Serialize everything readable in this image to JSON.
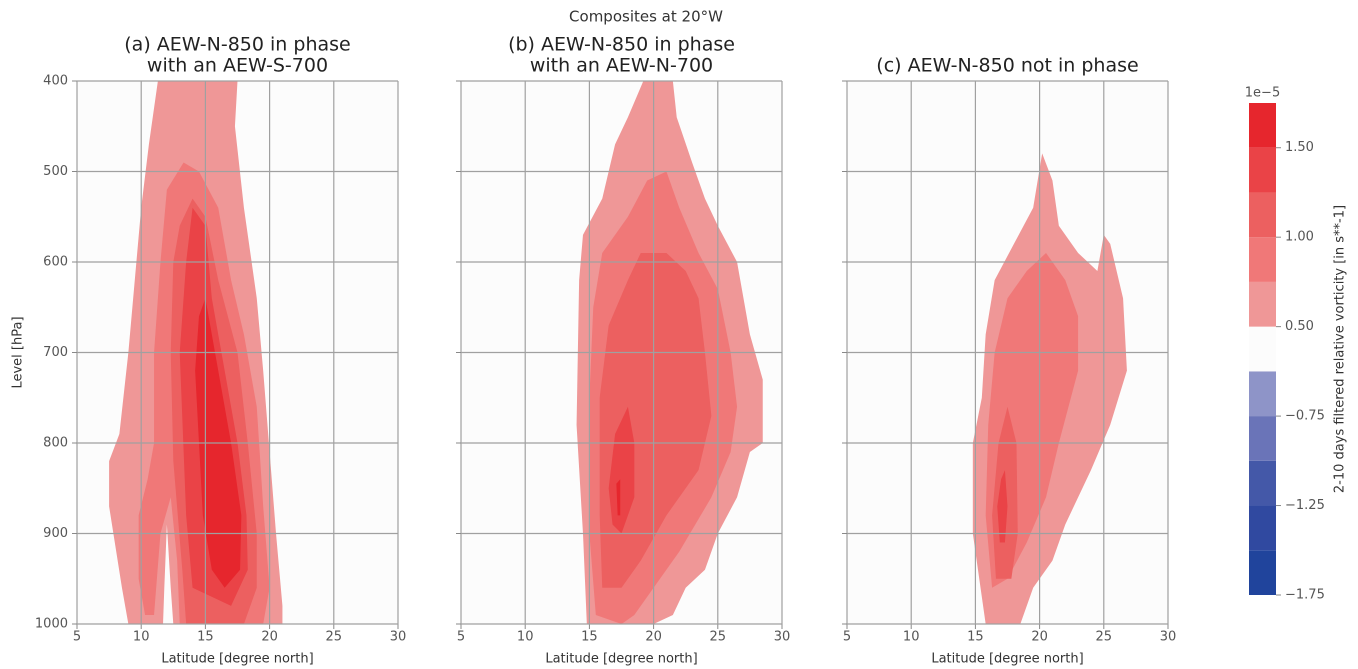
{
  "title": "Composites at 20°W",
  "chart_data": [
    {
      "type": "contour",
      "title_lines": [
        "(a) AEW-N-850 in phase",
        "with an AEW-S-700"
      ],
      "xlabel": "Latitude [degree north]",
      "ylabel": "Level [hPa]",
      "xlim": [
        5,
        30
      ],
      "ylim": [
        1000,
        400
      ],
      "xticks": [
        5,
        10,
        15,
        20,
        25,
        30
      ],
      "yticks": [
        400,
        500,
        600,
        700,
        800,
        900,
        1000
      ],
      "ytick_labels": true,
      "grid": true,
      "contours": [
        {
          "level": 0.5,
          "points": [
            [
              9,
              1000
            ],
            [
              8.5,
              960
            ],
            [
              7.5,
              870
            ],
            [
              7.5,
              820
            ],
            [
              8.3,
              790
            ],
            [
              9,
              700
            ],
            [
              9.5,
              620
            ],
            [
              10,
              540
            ],
            [
              10.6,
              470
            ],
            [
              11.3,
              400
            ],
            [
              17.5,
              400
            ],
            [
              17.3,
              450
            ],
            [
              18,
              540
            ],
            [
              19,
              640
            ],
            [
              19.5,
              720
            ],
            [
              20,
              810
            ],
            [
              20.5,
              900
            ],
            [
              21,
              980
            ],
            [
              21,
              1000
            ],
            [
              12.5,
              1000
            ],
            [
              12.3,
              960
            ],
            [
              12,
              890
            ],
            [
              11.8,
              960
            ],
            [
              11.7,
              1000
            ]
          ]
        },
        {
          "level": 0.75,
          "points": [
            [
              10.3,
              990
            ],
            [
              9.8,
              950
            ],
            [
              9.8,
              880
            ],
            [
              10.5,
              840
            ],
            [
              11,
              800
            ],
            [
              11,
              700
            ],
            [
              11.5,
              600
            ],
            [
              12,
              520
            ],
            [
              13.3,
              490
            ],
            [
              14.5,
              500
            ],
            [
              16,
              540
            ],
            [
              17,
              620
            ],
            [
              18,
              680
            ],
            [
              19,
              760
            ],
            [
              19.5,
              870
            ],
            [
              20,
              960
            ],
            [
              19.5,
              1000
            ],
            [
              13,
              1000
            ],
            [
              12.8,
              930
            ],
            [
              12.3,
              860
            ],
            [
              11.5,
              900
            ],
            [
              11,
              990
            ]
          ]
        },
        {
          "level": 1.0,
          "points": [
            [
              13.5,
              1000
            ],
            [
              13.2,
              940
            ],
            [
              12.5,
              820
            ],
            [
              12.3,
              700
            ],
            [
              12.5,
              600
            ],
            [
              13,
              560
            ],
            [
              14,
              530
            ],
            [
              15,
              550
            ],
            [
              16,
              620
            ],
            [
              17.5,
              700
            ],
            [
              18.3,
              800
            ],
            [
              19,
              900
            ],
            [
              19,
              960
            ],
            [
              18,
              1000
            ]
          ]
        },
        {
          "level": 1.25,
          "points": [
            [
              14,
              960
            ],
            [
              13.5,
              880
            ],
            [
              13,
              700
            ],
            [
              13.5,
              600
            ],
            [
              14,
              540
            ],
            [
              15,
              560
            ],
            [
              15.5,
              640
            ],
            [
              16.5,
              720
            ],
            [
              17.5,
              800
            ],
            [
              18.2,
              880
            ],
            [
              18.3,
              940
            ],
            [
              17,
              980
            ]
          ]
        },
        {
          "level": 1.5,
          "points": [
            [
              15.5,
              940
            ],
            [
              14.8,
              880
            ],
            [
              14.5,
              800
            ],
            [
              14.2,
              720
            ],
            [
              14.5,
              660
            ],
            [
              15,
              640
            ],
            [
              16,
              720
            ],
            [
              17,
              800
            ],
            [
              17.8,
              880
            ],
            [
              17.7,
              940
            ],
            [
              16.5,
              960
            ]
          ]
        }
      ]
    },
    {
      "type": "contour",
      "title_lines": [
        "(b) AEW-N-850 in phase",
        "with an AEW-N-700"
      ],
      "xlabel": "Latitude [degree north]",
      "xlim": [
        5,
        30
      ],
      "ylim": [
        1000,
        400
      ],
      "xticks": [
        5,
        10,
        15,
        20,
        25,
        30
      ],
      "yticks": [
        400,
        500,
        600,
        700,
        800,
        900,
        1000
      ],
      "ytick_labels": false,
      "grid": true,
      "contours": [
        {
          "level": 0.5,
          "points": [
            [
              14.8,
              1000
            ],
            [
              14.5,
              900
            ],
            [
              14,
              780
            ],
            [
              14.2,
              620
            ],
            [
              14.5,
              570
            ],
            [
              16,
              530
            ],
            [
              17,
              470
            ],
            [
              18,
              440
            ],
            [
              19.2,
              400
            ],
            [
              21.5,
              400
            ],
            [
              21.8,
              440
            ],
            [
              23,
              490
            ],
            [
              24,
              530
            ],
            [
              25,
              560
            ],
            [
              26.5,
              600
            ],
            [
              27.5,
              680
            ],
            [
              28.5,
              730
            ],
            [
              28.5,
              800
            ],
            [
              27.5,
              810
            ],
            [
              26.5,
              860
            ],
            [
              25,
              900
            ],
            [
              24,
              940
            ],
            [
              22.5,
              960
            ],
            [
              21.5,
              990
            ],
            [
              20,
              1000
            ]
          ]
        },
        {
          "level": 0.75,
          "points": [
            [
              15.5,
              990
            ],
            [
              15,
              900
            ],
            [
              15,
              750
            ],
            [
              15.3,
              650
            ],
            [
              16,
              590
            ],
            [
              18,
              550
            ],
            [
              19.5,
              510
            ],
            [
              21,
              500
            ],
            [
              22,
              540
            ],
            [
              23.5,
              590
            ],
            [
              25,
              630
            ],
            [
              26,
              700
            ],
            [
              26.5,
              760
            ],
            [
              26,
              810
            ],
            [
              24.5,
              860
            ],
            [
              22,
              920
            ],
            [
              20,
              960
            ],
            [
              18.5,
              990
            ],
            [
              17.5,
              1000
            ]
          ]
        },
        {
          "level": 1.0,
          "points": [
            [
              16,
              960
            ],
            [
              15.8,
              880
            ],
            [
              15.8,
              750
            ],
            [
              16.5,
              670
            ],
            [
              18,
              620
            ],
            [
              19,
              590
            ],
            [
              21,
              590
            ],
            [
              22.5,
              610
            ],
            [
              23.5,
              640
            ],
            [
              24,
              700
            ],
            [
              24.5,
              770
            ],
            [
              23.5,
              830
            ],
            [
              21,
              880
            ],
            [
              19,
              930
            ],
            [
              17.5,
              960
            ]
          ]
        },
        {
          "level": 1.25,
          "points": [
            [
              16.8,
              890
            ],
            [
              16.5,
              850
            ],
            [
              17,
              790
            ],
            [
              18,
              760
            ],
            [
              18.5,
              800
            ],
            [
              18.5,
              860
            ],
            [
              17.5,
              900
            ]
          ]
        },
        {
          "level": 1.5,
          "points": [
            [
              17.2,
              880
            ],
            [
              17.1,
              845
            ],
            [
              17.4,
              840
            ],
            [
              17.4,
              880
            ]
          ]
        }
      ]
    },
    {
      "type": "contour",
      "title_lines": [
        "(c) AEW-N-850 not in phase"
      ],
      "xlabel": "Latitude [degree north]",
      "xlim": [
        5,
        30
      ],
      "ylim": [
        1000,
        400
      ],
      "xticks": [
        5,
        10,
        15,
        20,
        25,
        30
      ],
      "yticks": [
        400,
        500,
        600,
        700,
        800,
        900,
        1000
      ],
      "ytick_labels": false,
      "grid": true,
      "contours": [
        {
          "level": 0.5,
          "points": [
            [
              15.8,
              1000
            ],
            [
              14.8,
              900
            ],
            [
              14.8,
              800
            ],
            [
              15.5,
              750
            ],
            [
              15.8,
              680
            ],
            [
              16.5,
              620
            ],
            [
              18,
              580
            ],
            [
              19.5,
              540
            ],
            [
              20.2,
              480
            ],
            [
              21,
              510
            ],
            [
              21.5,
              560
            ],
            [
              23,
              590
            ],
            [
              24.5,
              610
            ],
            [
              25,
              570
            ],
            [
              25.5,
              580
            ],
            [
              26.5,
              640
            ],
            [
              26.8,
              720
            ],
            [
              25.5,
              780
            ],
            [
              24,
              830
            ],
            [
              22,
              890
            ],
            [
              21,
              930
            ],
            [
              19.5,
              960
            ],
            [
              18.5,
              1000
            ]
          ]
        },
        {
          "level": 0.75,
          "points": [
            [
              16.3,
              960
            ],
            [
              15.8,
              880
            ],
            [
              16,
              780
            ],
            [
              16.5,
              700
            ],
            [
              17.5,
              640
            ],
            [
              19,
              610
            ],
            [
              20.5,
              590
            ],
            [
              22,
              620
            ],
            [
              23,
              660
            ],
            [
              23,
              720
            ],
            [
              21.5,
              800
            ],
            [
              20.5,
              860
            ],
            [
              19,
              910
            ],
            [
              17.5,
              950
            ]
          ]
        },
        {
          "level": 1.0,
          "points": [
            [
              16.6,
              950
            ],
            [
              16.3,
              880
            ],
            [
              16.8,
              800
            ],
            [
              17.5,
              760
            ],
            [
              18.2,
              800
            ],
            [
              18.3,
              900
            ],
            [
              17.8,
              950
            ]
          ]
        },
        {
          "level": 1.25,
          "points": [
            [
              16.9,
              910
            ],
            [
              16.7,
              870
            ],
            [
              17,
              840
            ],
            [
              17.3,
              830
            ],
            [
              17.5,
              870
            ],
            [
              17.3,
              910
            ]
          ]
        }
      ]
    },
    {
      "type": "colorbar",
      "label": "2-10 days filtered relative vorticity [in s**-1]",
      "offset_text": "1e−5",
      "levels": [
        -1.75,
        -1.5,
        -1.25,
        -1.0,
        -0.75,
        -0.5,
        0.5,
        0.75,
        1.0,
        1.25,
        1.5,
        1.75
      ],
      "colors": [
        "#20449c",
        "#3049a0",
        "#4458a8",
        "#6a74b8",
        "#8e94c8",
        "#fcfcfc",
        "#ef9797",
        "#f07878",
        "#ec6060",
        "#ea4347",
        "#e6262d"
      ],
      "ticks": [
        {
          "value": -1.75,
          "label": "−1.75"
        },
        {
          "value": -1.25,
          "label": "−1.25"
        },
        {
          "value": -0.75,
          "label": "−0.75"
        },
        {
          "value": 0.5,
          "label": "0.50"
        },
        {
          "value": 1.0,
          "label": "1.00"
        },
        {
          "value": 1.5,
          "label": "1.50"
        }
      ]
    }
  ]
}
